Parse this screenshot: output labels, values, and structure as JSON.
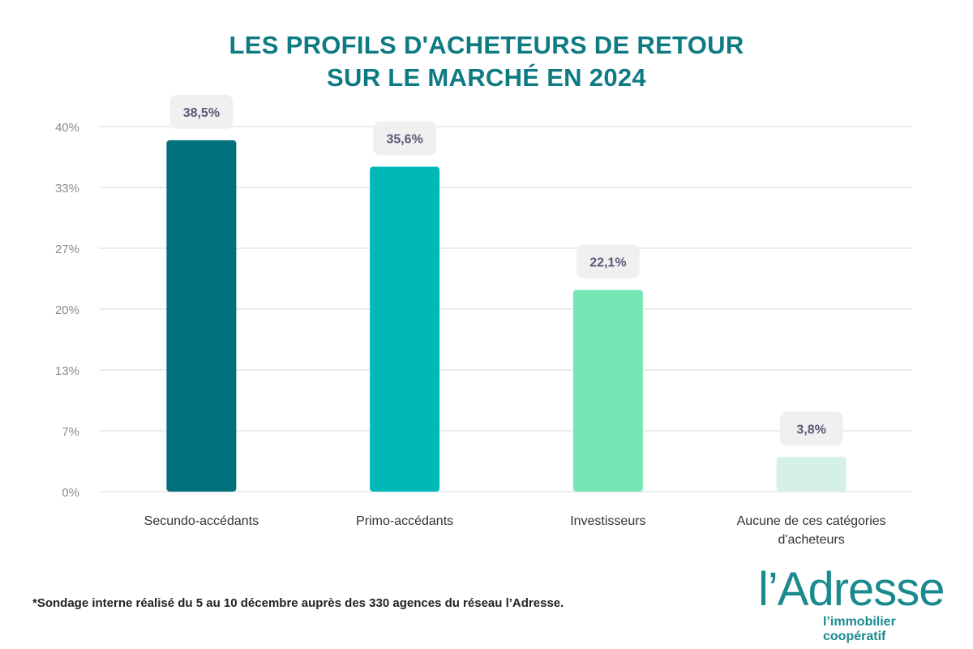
{
  "title_lines": [
    "LES PROFILS D'ACHETEURS DE RETOUR",
    "SUR LE MARCHÉ EN 2024"
  ],
  "footnote": "*Sondage interne réalisé du 5 au 10 décembre auprès des 330 agences du réseau l’Adresse.",
  "logo": {
    "name": "l’Adresse",
    "tagline": "l’immobilier coopératif"
  },
  "colors": {
    "title": "#0e7a82",
    "grid": "#e6e6e6",
    "tick": "#8a8a8a",
    "label_bg": "#f0f0f0",
    "label_text": "#5a5a78"
  },
  "chart_data": {
    "type": "bar",
    "title": "LES PROFILS D'ACHETEURS DE RETOUR SUR LE MARCHÉ EN 2024",
    "categories": [
      [
        "Secundo-accédants"
      ],
      [
        "Primo-accédants"
      ],
      [
        "Investisseurs"
      ],
      [
        "Aucune de ces catégories",
        "d'acheteurs"
      ]
    ],
    "values": [
      38.5,
      35.6,
      22.1,
      3.8
    ],
    "data_labels": [
      "38,5%",
      "35,6%",
      "22,1%",
      "3,8%"
    ],
    "bar_colors": [
      "#00707c",
      "#00b8b8",
      "#75e5b3",
      "#d5f1e7"
    ],
    "yticks": [
      0,
      6.67,
      13.33,
      20,
      26.67,
      33.33,
      40
    ],
    "ytick_labels": [
      "0%",
      "7%",
      "13%",
      "20%",
      "27%",
      "33%",
      "40%"
    ],
    "ylim": [
      0,
      40
    ],
    "grid": true,
    "legend": "none"
  }
}
